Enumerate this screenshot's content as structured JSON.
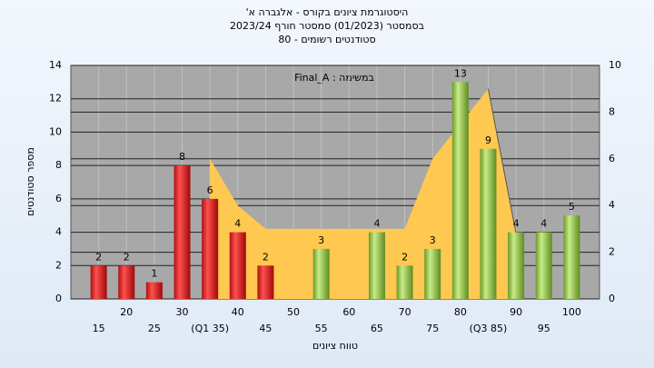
{
  "chart_data": {
    "type": "bar",
    "title": "היסטוגרמת ציונים בקורס - אלגברה א'",
    "subtitle": "בסמסטר (01/2023) סמסטר חורף 2023/24",
    "subtitle2": "סטודנטים רשומים - 80",
    "annotation": "במשימה : Final_A",
    "y_label": "מספר סטודנטים",
    "x_label": "טווח ציונים",
    "x": [
      15,
      20,
      25,
      30,
      35,
      40,
      45,
      50,
      55,
      60,
      65,
      70,
      75,
      80,
      85,
      90,
      95,
      100
    ],
    "values": [
      2,
      2,
      1,
      8,
      6,
      4,
      2,
      0,
      3,
      0,
      4,
      2,
      3,
      13,
      9,
      4,
      4,
      5
    ],
    "colors": [
      "red",
      "red",
      "red",
      "red",
      "red",
      "red",
      "red",
      "red",
      "green",
      "green",
      "green",
      "green",
      "green",
      "green",
      "green",
      "green",
      "green",
      "green"
    ],
    "area": {
      "axis": "y2",
      "color": "#ffc850",
      "x": [
        35,
        40,
        45,
        50,
        55,
        60,
        65,
        70,
        75,
        80,
        85,
        90
      ],
      "values": [
        6,
        4,
        3,
        3,
        3,
        3,
        3,
        3,
        6,
        7.5,
        9,
        2.8
      ]
    },
    "xlim": [
      10,
      105
    ],
    "xticks": [
      15,
      20,
      25,
      30,
      {
        "value": 35,
        "label": "(Q1 35)"
      },
      40,
      45,
      50,
      55,
      60,
      65,
      70,
      75,
      80,
      {
        "value": 85,
        "label": "(Q3 85)"
      },
      90,
      95,
      100
    ],
    "ylim": [
      0,
      14
    ],
    "yticks": [
      0,
      2,
      4,
      6,
      8,
      10,
      12,
      14
    ],
    "y2lim": [
      0,
      10
    ],
    "y2ticks": [
      0,
      2,
      4,
      6,
      8,
      10
    ],
    "grid": true
  }
}
